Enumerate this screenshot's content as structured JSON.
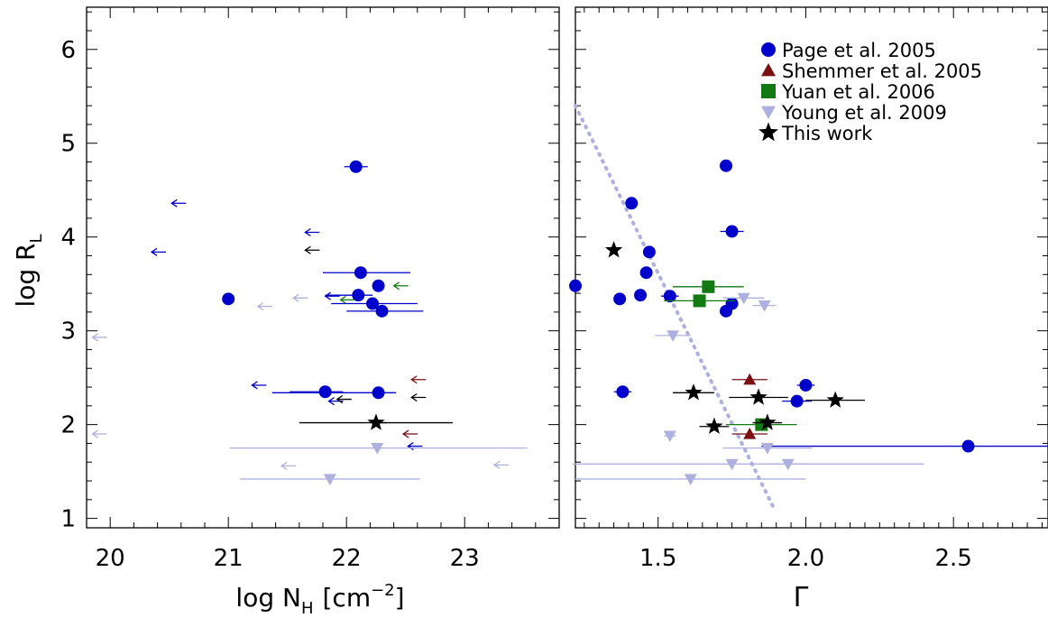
{
  "colors": {
    "page": "#0000cc",
    "shemmer": "#7a1010",
    "yuan": "#137a13",
    "young": "#aeb0e0",
    "this_work": "#000000",
    "dotted_line": "#aeb0e0",
    "axes": "#000000"
  },
  "labels": {
    "ylabel_main": "log R",
    "ylabel_sub": "L",
    "xlabel_left_main": "log N",
    "xlabel_left_sub": "H",
    "xlabel_left_unit": "[cm",
    "xlabel_left_exp": "−2",
    "xlabel_left_close": "]",
    "xlabel_right": "Γ"
  },
  "legend": [
    {
      "label": "Page et al. 2005",
      "marker": "circle",
      "color_key": "page"
    },
    {
      "label": "Shemmer et al. 2005",
      "marker": "triangle-up",
      "color_key": "shemmer"
    },
    {
      "label": "Yuan et al. 2006",
      "marker": "square",
      "color_key": "yuan"
    },
    {
      "label": "Young et al. 2009",
      "marker": "triangle-down",
      "color_key": "young"
    },
    {
      "label": "This work",
      "marker": "star",
      "color_key": "this_work"
    }
  ],
  "chart_data": [
    {
      "type": "scatter",
      "panel": "left",
      "xlabel": "log N_H [cm^-2]",
      "ylabel": "log R_L",
      "xlim": [
        19.8,
        23.8
      ],
      "ylim": [
        0.9,
        6.45
      ],
      "xticks": [
        "20",
        "21",
        "22",
        "23"
      ],
      "yticks": [
        "1",
        "2",
        "3",
        "4",
        "5",
        "6"
      ],
      "series": [
        {
          "name": "Page et al. 2005",
          "marker": "circle",
          "color_key": "page",
          "points": [
            {
              "x": 22.08,
              "y": 4.75,
              "xerr": [
                0.1,
                0.1
              ]
            },
            {
              "x": 22.12,
              "y": 3.62,
              "xerr": [
                0.32,
                0.42
              ]
            },
            {
              "x": 22.27,
              "y": 3.48,
              "xerr": [
                0.05,
                0.05
              ]
            },
            {
              "x": 22.1,
              "y": 3.38,
              "xerr": [
                0.28,
                0.12
              ]
            },
            {
              "x": 22.22,
              "y": 3.29,
              "xerr": [
                0.35,
                0.38
              ]
            },
            {
              "x": 22.3,
              "y": 3.21,
              "xerr": [
                0.3,
                0.35
              ]
            },
            {
              "x": 21.0,
              "y": 3.34
            },
            {
              "x": 21.82,
              "y": 2.35,
              "xerr": [
                0.3,
                0.15
              ]
            },
            {
              "x": 22.27,
              "y": 2.34,
              "xerr": [
                0.9,
                0.15
              ]
            }
          ],
          "upper_limits": [
            {
              "x": 20.52,
              "y": 4.36
            },
            {
              "x": 20.35,
              "y": 3.84
            },
            {
              "x": 21.65,
              "y": 4.05
            },
            {
              "x": 21.82,
              "y": 3.37
            },
            {
              "x": 21.2,
              "y": 2.42
            },
            {
              "x": 21.85,
              "y": 2.25
            },
            {
              "x": 22.52,
              "y": 1.77
            }
          ]
        },
        {
          "name": "Shemmer et al. 2005",
          "marker": "triangle-up",
          "color_key": "shemmer",
          "points": [],
          "upper_limits": [
            {
              "x": 22.55,
              "y": 2.48
            },
            {
              "x": 22.48,
              "y": 1.9
            }
          ]
        },
        {
          "name": "Yuan et al. 2006",
          "marker": "square",
          "color_key": "yuan",
          "points": [],
          "upper_limits": [
            {
              "x": 22.4,
              "y": 3.48
            },
            {
              "x": 21.95,
              "y": 3.33
            },
            {
              "x": 22.22,
              "y": 2.02
            }
          ]
        },
        {
          "name": "Young et al. 2009",
          "marker": "triangle-down",
          "color_key": "young",
          "points": [
            {
              "x": 22.26,
              "y": 1.75,
              "xerr": [
                1.25,
                1.27
              ]
            },
            {
              "x": 21.86,
              "y": 1.42,
              "xerr": [
                0.76,
                0.76
              ]
            }
          ],
          "upper_limits": [
            {
              "x": 19.85,
              "y": 2.93
            },
            {
              "x": 19.85,
              "y": 1.9
            },
            {
              "x": 21.25,
              "y": 3.26
            },
            {
              "x": 21.55,
              "y": 3.35
            },
            {
              "x": 21.45,
              "y": 1.56
            },
            {
              "x": 23.25,
              "y": 1.57
            }
          ]
        },
        {
          "name": "This work",
          "marker": "star",
          "color_key": "this_work",
          "points": [
            {
              "x": 22.25,
              "y": 2.02,
              "xerr": [
                0.65,
                0.65
              ]
            }
          ],
          "upper_limits": [
            {
              "x": 21.65,
              "y": 3.86
            },
            {
              "x": 21.92,
              "y": 2.27
            },
            {
              "x": 22.55,
              "y": 2.29
            }
          ]
        }
      ]
    },
    {
      "type": "scatter",
      "panel": "right",
      "xlabel": "Γ",
      "ylabel": "log R_L",
      "xlim": [
        1.22,
        2.82
      ],
      "ylim": [
        0.9,
        6.45
      ],
      "xticks": [
        "1.5",
        "2.0",
        "2.5"
      ],
      "yticks": [
        "1",
        "2",
        "3",
        "4",
        "5",
        "6"
      ],
      "series": [
        {
          "name": "Page et al. 2005",
          "marker": "circle",
          "color_key": "page",
          "points": [
            {
              "x": 1.73,
              "y": 4.76
            },
            {
              "x": 1.41,
              "y": 4.36
            },
            {
              "x": 1.75,
              "y": 4.06,
              "xerr": [
                0.04,
                0.04
              ]
            },
            {
              "x": 1.47,
              "y": 3.84
            },
            {
              "x": 1.46,
              "y": 3.62,
              "xerr": [
                0.02,
                0.02
              ]
            },
            {
              "x": 1.22,
              "y": 3.48
            },
            {
              "x": 1.44,
              "y": 3.38
            },
            {
              "x": 1.54,
              "y": 3.37,
              "xerr": [
                0.03,
                0.03
              ]
            },
            {
              "x": 1.37,
              "y": 3.34
            },
            {
              "x": 1.75,
              "y": 3.29
            },
            {
              "x": 1.73,
              "y": 3.21,
              "xerr": [
                0.02,
                0.02
              ]
            },
            {
              "x": 1.38,
              "y": 2.35,
              "xerr": [
                0.03,
                0.03
              ]
            },
            {
              "x": 2.0,
              "y": 2.42,
              "xerr": [
                0.03,
                0.03
              ]
            },
            {
              "x": 1.97,
              "y": 2.25,
              "xerr": [
                0.05,
                0.05
              ]
            },
            {
              "x": 2.55,
              "y": 1.77,
              "xerr": [
                0.7,
                0.3
              ]
            }
          ]
        },
        {
          "name": "Shemmer et al. 2005",
          "marker": "triangle-up",
          "color_key": "shemmer",
          "points": [
            {
              "x": 1.81,
              "y": 2.48,
              "xerr": [
                0.06,
                0.06
              ]
            },
            {
              "x": 1.81,
              "y": 1.9,
              "xerr": [
                0.06,
                0.06
              ]
            }
          ]
        },
        {
          "name": "Yuan et al. 2006",
          "marker": "square",
          "color_key": "yuan",
          "points": [
            {
              "x": 1.67,
              "y": 3.47,
              "xerr": [
                0.12,
                0.12
              ]
            },
            {
              "x": 1.64,
              "y": 3.32,
              "xerr": [
                0.12,
                0.12
              ]
            },
            {
              "x": 1.85,
              "y": 2.0,
              "xerr": [
                0.12,
                0.12
              ]
            }
          ]
        },
        {
          "name": "Young et al. 2009",
          "marker": "triangle-down",
          "color_key": "young",
          "points": [
            {
              "x": 1.79,
              "y": 3.35,
              "xerr": [
                0.07,
                0.07
              ]
            },
            {
              "x": 1.86,
              "y": 3.27,
              "xerr": [
                0.04,
                0.04
              ]
            },
            {
              "x": 1.55,
              "y": 2.95,
              "xerr": [
                0.06,
                0.06
              ]
            },
            {
              "x": 1.54,
              "y": 1.88,
              "xerr": [
                0.02,
                0.02
              ]
            },
            {
              "x": 1.87,
              "y": 1.75,
              "xerr": [
                0.15,
                0.15
              ]
            },
            {
              "x": 1.75,
              "y": 1.58,
              "xerr": [
                0.54,
                0.65
              ]
            },
            {
              "x": 1.94,
              "y": 1.58,
              "xerr": [
                0.07,
                0.07
              ]
            },
            {
              "x": 1.61,
              "y": 1.42,
              "xerr": [
                0.39,
                0.39
              ]
            }
          ]
        },
        {
          "name": "This work",
          "marker": "star",
          "color_key": "this_work",
          "points": [
            {
              "x": 1.35,
              "y": 3.86
            },
            {
              "x": 1.62,
              "y": 2.34,
              "xerr": [
                0.07,
                0.07
              ]
            },
            {
              "x": 1.84,
              "y": 2.29,
              "xerr": [
                0.1,
                0.1
              ]
            },
            {
              "x": 2.1,
              "y": 2.26,
              "xerr": [
                0.1,
                0.1
              ]
            },
            {
              "x": 1.69,
              "y": 1.98,
              "xerr": [
                0.05,
                0.05
              ]
            },
            {
              "x": 1.87,
              "y": 2.02,
              "xerr": [
                0.05,
                0.05
              ]
            }
          ]
        }
      ],
      "dotted_line": {
        "x": [
          1.22,
          1.89
        ],
        "y": [
          5.4,
          1.12
        ]
      }
    }
  ]
}
